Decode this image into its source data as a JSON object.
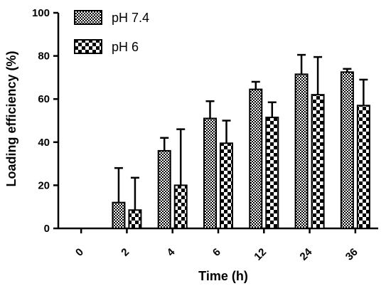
{
  "chart_data": {
    "type": "bar",
    "xlabel": "Time (h)",
    "ylabel": "Loading efficiency (%)",
    "categories": [
      "0",
      "2",
      "4",
      "6",
      "12",
      "24",
      "36"
    ],
    "ylim": [
      0,
      100
    ],
    "yticks": [
      0,
      20,
      40,
      60,
      80,
      100
    ],
    "grid": false,
    "legend_position": "top-left",
    "series": [
      {
        "name": "pH 7.4",
        "pattern": "fine-checker",
        "values": [
          0,
          12,
          36,
          51,
          64.5,
          71.5,
          72.5
        ],
        "errors": [
          0,
          16,
          6,
          8,
          3.5,
          9,
          1.5
        ]
      },
      {
        "name": "pH 6",
        "pattern": "coarse-checker",
        "values": [
          0,
          8.5,
          20,
          39.5,
          51.5,
          62,
          57
        ],
        "errors": [
          0,
          15,
          26,
          10.5,
          7,
          17.5,
          12
        ]
      }
    ],
    "colors": {
      "ink": "#000000",
      "background": "#ffffff"
    }
  }
}
